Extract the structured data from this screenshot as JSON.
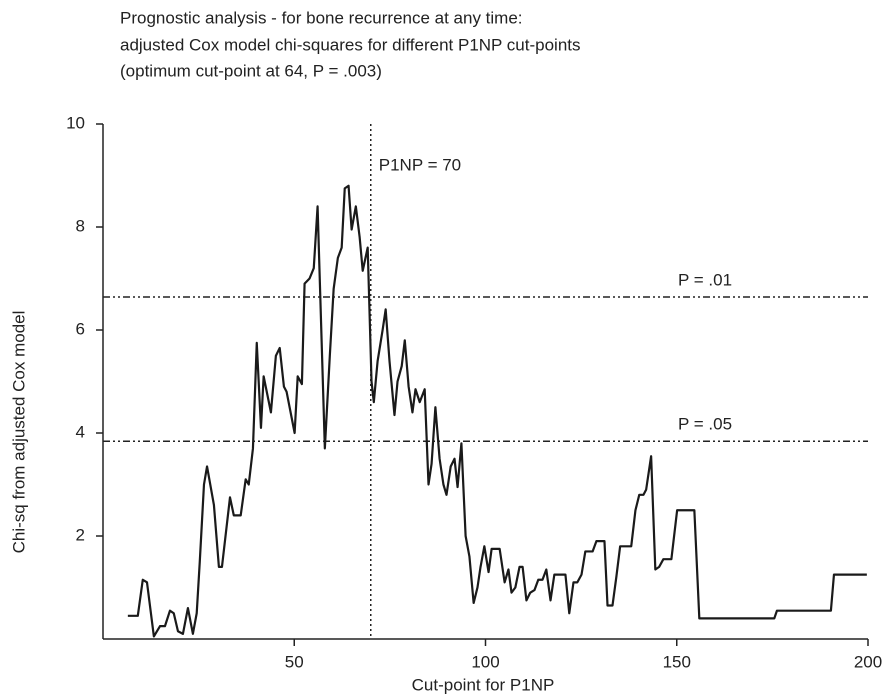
{
  "chart_data": {
    "type": "line",
    "title": [
      "Prognostic analysis - for bone recurrence at any time:",
      "adjusted Cox model chi-squares for different P1NP cut-points",
      "(optimum cut-point at 64, P = .003)"
    ],
    "x_label": "Cut-point for P1NP",
    "y_label": "Chi-sq from adjusted Cox model",
    "xlim": [
      0,
      200
    ],
    "ylim": [
      0,
      10
    ],
    "xticks": [
      50,
      100,
      150,
      200
    ],
    "yticks": [
      2,
      4,
      6,
      8,
      10
    ],
    "series": [
      {
        "color": "#1a1a1a",
        "x": [
          6.5,
          9.1,
          10.4,
          11.5,
          13.3,
          14.9,
          16.2,
          17.5,
          18.5,
          19.6,
          20.9,
          22.2,
          23.5,
          24.5,
          25.3,
          26.4,
          27.2,
          29.0,
          30.3,
          31.1,
          33.2,
          34.2,
          36.0,
          37.3,
          38.1,
          39.2,
          40.2,
          41.3,
          42.0,
          43.9,
          45.2,
          46.2,
          47.3,
          48.0,
          50.1,
          50.9,
          52.0,
          52.7,
          54.0,
          55.1,
          56.1,
          58.0,
          59.3,
          60.3,
          61.4,
          62.4,
          63.2,
          64.2,
          65.0,
          66.1,
          67.1,
          67.9,
          69.2,
          70.2,
          70.8,
          71.8,
          73.1,
          73.9,
          74.9,
          76.2,
          77.0,
          78.1,
          78.9,
          79.9,
          80.9,
          81.7,
          82.8,
          84.1,
          85.1,
          85.9,
          86.9,
          88.0,
          89.0,
          89.8,
          90.9,
          91.9,
          92.7,
          93.7,
          94.8,
          95.8,
          96.9,
          97.9,
          98.7,
          99.7,
          100.8,
          101.6,
          103.7,
          105.0,
          106.0,
          106.8,
          107.8,
          108.9,
          109.7,
          110.7,
          111.7,
          112.8,
          113.8,
          114.9,
          115.9,
          117.0,
          118.0,
          120.9,
          121.9,
          123.0,
          124.0,
          125.1,
          126.1,
          128.0,
          129.0,
          131.1,
          131.9,
          133.2,
          134.2,
          135.2,
          138.1,
          139.2,
          140.2,
          141.3,
          142.0,
          143.3,
          144.4,
          145.4,
          146.5,
          148.6,
          150.1,
          154.6,
          155.9,
          175.5,
          176.2,
          190.3,
          191.1,
          199.7
        ],
        "values": [
          0.45,
          0.45,
          1.15,
          1.1,
          0.05,
          0.25,
          0.25,
          0.55,
          0.5,
          0.15,
          0.1,
          0.6,
          0.1,
          0.5,
          1.5,
          3.0,
          3.35,
          2.6,
          1.4,
          1.4,
          2.75,
          2.4,
          2.4,
          3.1,
          3.0,
          3.7,
          5.75,
          4.1,
          5.1,
          4.4,
          5.5,
          5.65,
          4.9,
          4.8,
          4.0,
          5.1,
          4.95,
          6.9,
          7.0,
          7.2,
          8.4,
          3.7,
          5.5,
          6.8,
          7.4,
          7.6,
          8.75,
          8.8,
          7.95,
          8.4,
          7.8,
          7.15,
          7.6,
          5.0,
          4.6,
          5.4,
          6.0,
          6.4,
          5.4,
          4.35,
          5.0,
          5.3,
          5.8,
          4.9,
          4.4,
          4.85,
          4.6,
          4.85,
          3.0,
          3.4,
          4.5,
          3.5,
          3.0,
          2.8,
          3.35,
          3.5,
          2.95,
          3.8,
          2.0,
          1.6,
          0.7,
          1.0,
          1.4,
          1.8,
          1.3,
          1.75,
          1.75,
          1.1,
          1.35,
          0.9,
          1.0,
          1.4,
          1.4,
          0.75,
          0.9,
          0.95,
          1.15,
          1.15,
          1.35,
          0.75,
          1.25,
          1.25,
          0.5,
          1.1,
          1.1,
          1.25,
          1.7,
          1.7,
          1.9,
          1.9,
          0.65,
          0.65,
          1.2,
          1.8,
          1.8,
          2.5,
          2.8,
          2.8,
          2.9,
          3.55,
          1.35,
          1.4,
          1.55,
          1.55,
          2.5,
          2.5,
          0.4,
          0.4,
          0.55,
          0.55,
          1.25,
          1.25
        ]
      }
    ],
    "reference_lines": [
      {
        "axis": "x",
        "value": 70,
        "label": "P1NP = 70"
      },
      {
        "axis": "y",
        "value": 6.64,
        "label": "P = .01"
      },
      {
        "axis": "y",
        "value": 3.84,
        "label": "P = .05"
      }
    ]
  }
}
